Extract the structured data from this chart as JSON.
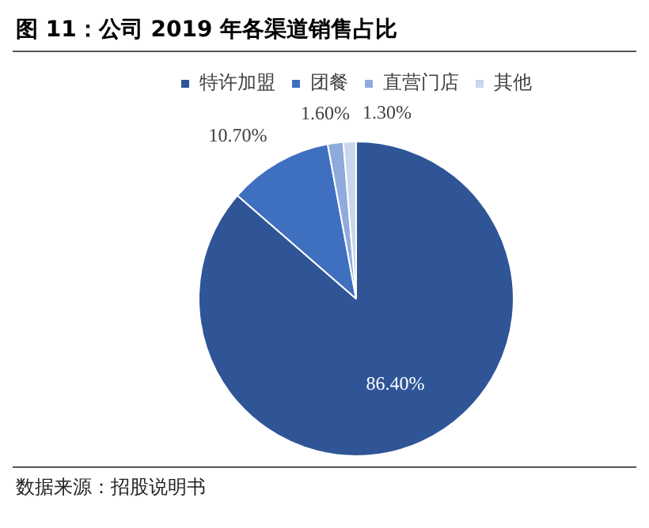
{
  "chart_data": {
    "type": "pie",
    "title": "图 11：公司 2019 年各渠道销售占比",
    "categories": [
      "特许加盟",
      "团餐",
      "直营门店",
      "其他"
    ],
    "values": [
      86.4,
      10.7,
      1.6,
      1.3
    ],
    "colors": [
      "#2f5597",
      "#3f6fbf",
      "#8faadc",
      "#c9d6ee"
    ],
    "value_labels": [
      "86.40%",
      "10.70%",
      "1.60%",
      "1.30%"
    ],
    "legend": "top",
    "annotations": [
      "数据来源：招股说明书"
    ]
  }
}
